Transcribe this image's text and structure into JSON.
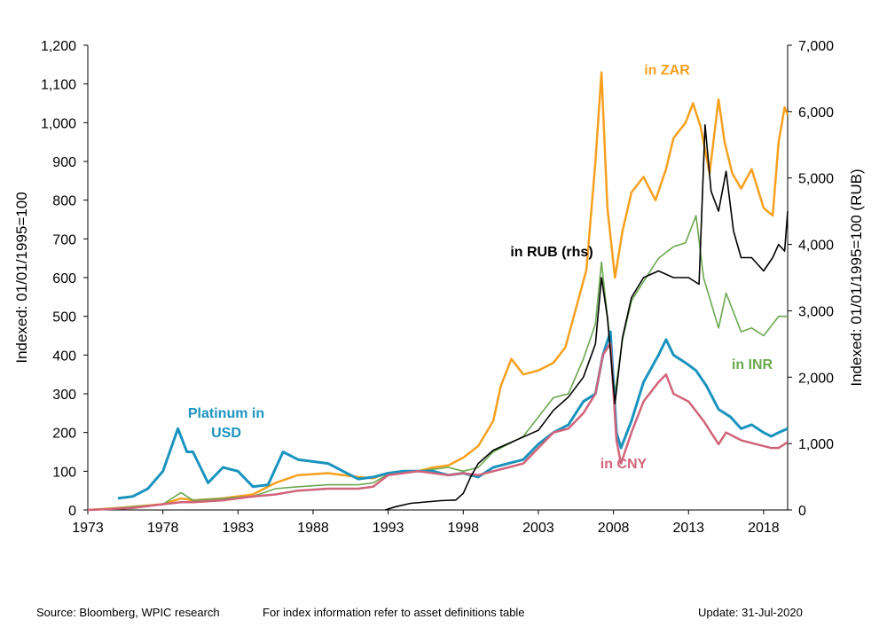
{
  "footer": {
    "source": "Source: Bloomberg, WPIC research",
    "note": "For index information refer to asset definitions table",
    "update": "Update: 31-Jul-2020"
  },
  "chart_data": {
    "type": "line",
    "ylabel": "Indexed: 01/01/1995=100",
    "y2label": "Indexed: 01/01/1995=100  (RUB)",
    "xlim": [
      1973,
      2019.6
    ],
    "ylim": [
      0,
      1200
    ],
    "y2lim": [
      0,
      7000
    ],
    "x_ticks": [
      "1973",
      "1978",
      "1983",
      "1988",
      "1993",
      "1998",
      "2003",
      "2008",
      "2013",
      "2018"
    ],
    "y_ticks": [
      "0",
      "100",
      "200",
      "300",
      "400",
      "500",
      "600",
      "700",
      "800",
      "900",
      "1,000",
      "1,100",
      "1,200"
    ],
    "y2_ticks": [
      "0",
      "1,000",
      "2,000",
      "3,000",
      "4,000",
      "5,000",
      "6,000",
      "7,000"
    ],
    "grid": false,
    "legend": "none (direct labels)",
    "series": [
      {
        "name": "in ZAR",
        "axis": "left",
        "color": "#F7A01F",
        "x": [
          1973,
          1975,
          1978,
          1979.2,
          1980,
          1982,
          1984,
          1985.5,
          1987,
          1989,
          1991,
          1992,
          1993,
          1995,
          1996,
          1997,
          1998,
          1999,
          2000,
          2000.5,
          2001.2,
          2002,
          2003,
          2004,
          2004.8,
          2005.5,
          2006.2,
          2006.8,
          2007.2,
          2007.6,
          2008.1,
          2008.6,
          2009.2,
          2010,
          2010.8,
          2011.5,
          2012,
          2012.8,
          2013.3,
          2013.8,
          2014.4,
          2015,
          2015.4,
          2015.9,
          2016.5,
          2017.2,
          2018,
          2018.6,
          2019,
          2019.4,
          2019.6
        ],
        "values": [
          0,
          5,
          15,
          30,
          25,
          30,
          40,
          70,
          90,
          95,
          85,
          82,
          95,
          100,
          110,
          115,
          135,
          165,
          230,
          320,
          390,
          350,
          360,
          380,
          420,
          520,
          620,
          900,
          1130,
          780,
          600,
          720,
          820,
          860,
          800,
          880,
          960,
          1000,
          1050,
          990,
          870,
          1060,
          950,
          870,
          830,
          880,
          780,
          760,
          950,
          1040,
          1020
        ]
      },
      {
        "name": "in INR",
        "axis": "left",
        "color": "#6AA84F",
        "x": [
          1973,
          1975,
          1978,
          1979.2,
          1980,
          1982,
          1984,
          1985.5,
          1987,
          1989,
          1991,
          1992,
          1993,
          1995,
          1997,
          1998,
          1999,
          2000,
          2001,
          2002,
          2003,
          2004,
          2005,
          2006,
          2006.8,
          2007.2,
          2007.6,
          2008.1,
          2008.6,
          2009.2,
          2010,
          2011,
          2012,
          2012.8,
          2013.5,
          2014,
          2015,
          2015.5,
          2016.5,
          2017.2,
          2018,
          2019,
          2019.6
        ],
        "values": [
          0,
          5,
          15,
          45,
          25,
          30,
          35,
          55,
          60,
          65,
          65,
          70,
          92,
          100,
          110,
          100,
          110,
          150,
          170,
          190,
          240,
          290,
          300,
          390,
          480,
          640,
          500,
          300,
          440,
          540,
          590,
          650,
          680,
          690,
          760,
          600,
          470,
          560,
          460,
          470,
          450,
          500,
          500
        ]
      },
      {
        "name": "Platinum in USD",
        "axis": "left",
        "color": "#1A93BE",
        "x": [
          1975,
          1976,
          1977,
          1978,
          1979,
          1979.6,
          1980,
          1981,
          1982,
          1983,
          1984,
          1985,
          1986,
          1987,
          1988,
          1989,
          1990,
          1991,
          1992,
          1993,
          1994,
          1995,
          1996,
          1997,
          1998,
          1999,
          2000,
          2001,
          2002,
          2003,
          2004,
          2005,
          2006,
          2006.8,
          2007.3,
          2007.8,
          2008.2,
          2008.5,
          2009.2,
          2010,
          2011,
          2011.5,
          2012,
          2012.8,
          2013.5,
          2014.2,
          2015,
          2015.8,
          2016.5,
          2017.2,
          2018,
          2018.5,
          2019,
          2019.6
        ],
        "values": [
          30,
          35,
          55,
          100,
          210,
          150,
          150,
          70,
          110,
          100,
          60,
          65,
          150,
          130,
          125,
          120,
          100,
          80,
          85,
          95,
          100,
          100,
          100,
          90,
          95,
          85,
          110,
          120,
          130,
          170,
          200,
          220,
          280,
          300,
          400,
          460,
          200,
          160,
          230,
          330,
          400,
          440,
          400,
          380,
          360,
          320,
          260,
          240,
          210,
          220,
          200,
          190,
          200,
          210
        ]
      },
      {
        "name": "in CNY",
        "axis": "left",
        "color": "#D0647A",
        "x": [
          1973,
          1976,
          1978,
          1979.2,
          1980,
          1982,
          1984,
          1985.5,
          1987,
          1989,
          1991,
          1992,
          1993,
          1995,
          1997,
          1998,
          1999,
          2000,
          2001,
          2002,
          2003,
          2004,
          2005,
          2006,
          2006.8,
          2007.3,
          2007.8,
          2008.2,
          2008.5,
          2009.2,
          2010,
          2011,
          2011.5,
          2012,
          2013,
          2014,
          2015,
          2015.5,
          2016.5,
          2017.5,
          2018.5,
          2019,
          2019.6
        ],
        "values": [
          0,
          5,
          15,
          20,
          20,
          25,
          35,
          40,
          50,
          55,
          55,
          60,
          90,
          100,
          90,
          95,
          90,
          100,
          110,
          120,
          160,
          200,
          210,
          250,
          300,
          400,
          430,
          180,
          120,
          200,
          280,
          330,
          350,
          300,
          280,
          230,
          170,
          200,
          180,
          170,
          160,
          160,
          175
        ]
      },
      {
        "name": "in RUB (rhs)",
        "axis": "right",
        "color": "#000000",
        "x": [
          1992.8,
          1993.5,
          1994.5,
          1995.5,
          1996.5,
          1997.5,
          1998,
          1998.5,
          1999,
          2000,
          2001,
          2002,
          2003,
          2004,
          2005,
          2006,
          2006.8,
          2007.2,
          2007.6,
          2008.1,
          2008.6,
          2009.2,
          2010,
          2011,
          2012,
          2013,
          2013.7,
          2014.1,
          2014.5,
          2015,
          2015.5,
          2016,
          2016.5,
          2017.2,
          2018,
          2018.6,
          2019,
          2019.4,
          2019.6
        ],
        "values": [
          0,
          50,
          100,
          120,
          140,
          150,
          250,
          500,
          700,
          900,
          1000,
          1100,
          1200,
          1500,
          1700,
          2000,
          2500,
          3500,
          2900,
          1600,
          2600,
          3200,
          3500,
          3600,
          3500,
          3500,
          3400,
          5800,
          4800,
          4500,
          5100,
          4200,
          3800,
          3800,
          3600,
          3800,
          4000,
          3900,
          4500
        ]
      }
    ],
    "labels": [
      {
        "text": "Platinum  in",
        "series": "Platinum in USD"
      },
      {
        "text": "USD",
        "series": "Platinum in USD"
      },
      {
        "text": "in ZAR",
        "series": "in ZAR"
      },
      {
        "text": "in RUB (rhs)",
        "series": "in RUB (rhs)"
      },
      {
        "text": "in INR",
        "series": "in INR"
      },
      {
        "text": "in CNY",
        "series": "in CNY"
      }
    ]
  }
}
